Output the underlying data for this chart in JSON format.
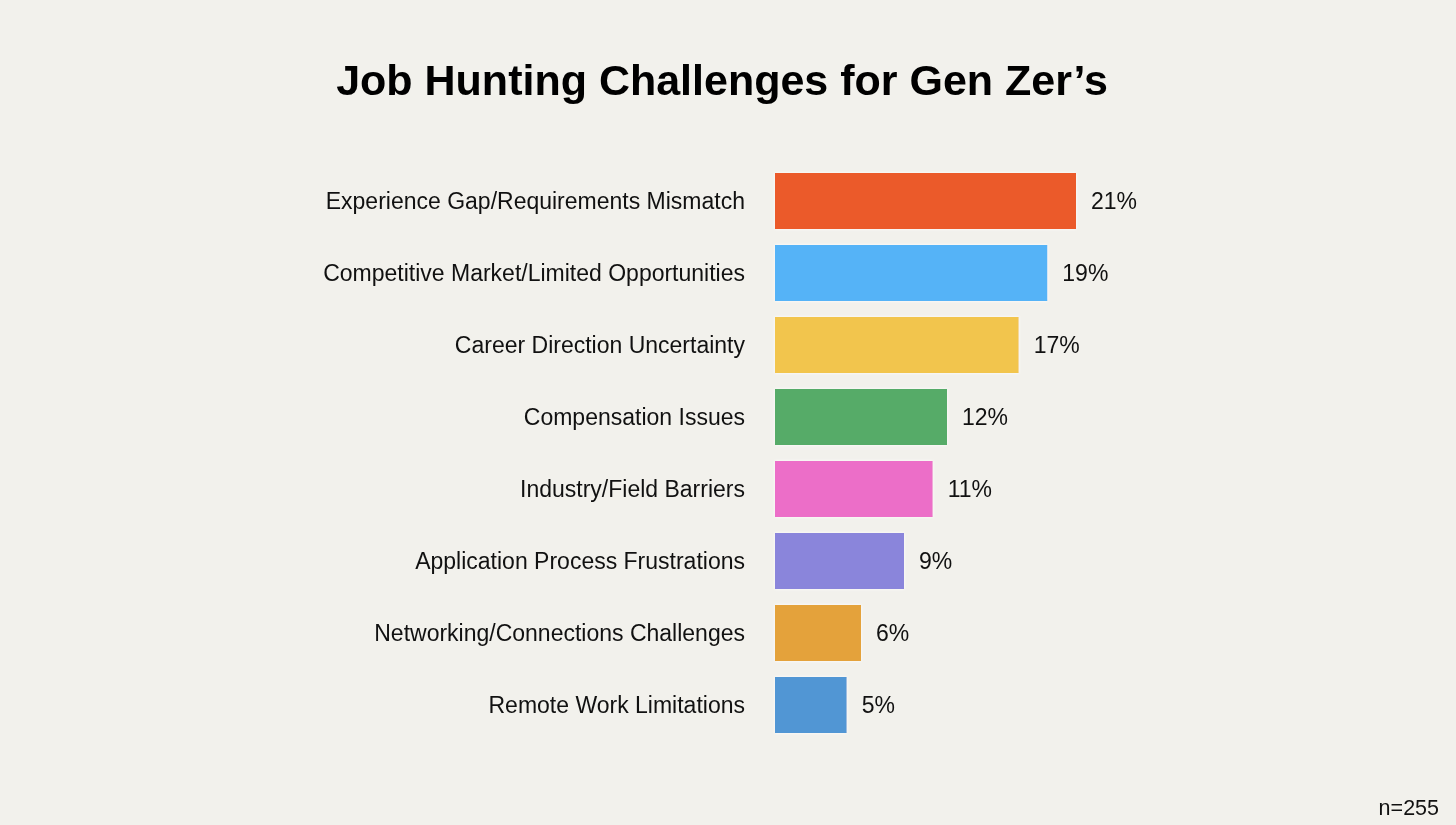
{
  "chart_data": {
    "type": "bar",
    "orientation": "horizontal",
    "title": "Job Hunting Challenges for Gen Zer’s",
    "categories": [
      "Experience Gap/Requirements Mismatch",
      "Competitive Market/Limited Opportunities",
      "Career Direction Uncertainty",
      "Compensation Issues",
      "Industry/Field Barriers",
      "Application Process Frustrations",
      "Networking/Connections Challenges",
      "Remote Work Limitations"
    ],
    "values": [
      21,
      19,
      17,
      12,
      11,
      9,
      6,
      5
    ],
    "colors": [
      "#eb5a2b",
      "#55b3f7",
      "#f2c54e",
      "#57ab68",
      "#ec6ec8",
      "#8a85db",
      "#e4a23b",
      "#5196d4"
    ],
    "value_labels": [
      "21%",
      "19%",
      "17%",
      "12%",
      "11%",
      "9%",
      "6%",
      "5%"
    ],
    "tick_labels": "y",
    "annotations": [
      "n=255"
    ]
  }
}
